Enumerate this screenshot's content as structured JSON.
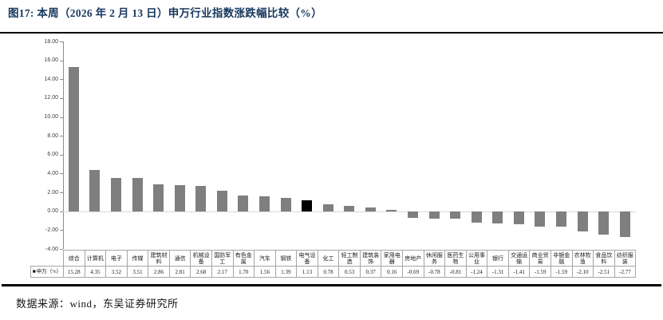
{
  "figure": {
    "title": "图17:  本周（2026 年 2 月 13 日）申万行业指数涨跌幅比较（%）",
    "source": "数据来源：wind，东吴证券研究所"
  },
  "chart_data": {
    "type": "bar",
    "title": "本周（2026 年 2 月 13 日）申万行业指数涨跌幅比较（%）",
    "series_name": "申万（%）",
    "legend": {
      "marker": "■",
      "label": "申万（%）"
    },
    "categories": [
      "综合",
      "计算机",
      "电子",
      "传媒",
      "建筑材料",
      "通信",
      "机械设备",
      "国防军工",
      "有色金属",
      "汽车",
      "钢铁",
      "电气设备",
      "化工",
      "轻工制造",
      "建筑装饰",
      "家用电器",
      "房地产",
      "休闲服务",
      "医药生物",
      "公用事业",
      "银行",
      "交通运输",
      "商业贸易",
      "非银金融",
      "农林牧渔",
      "食品饮料",
      "纺织服装"
    ],
    "values": [
      15.28,
      4.35,
      3.52,
      3.51,
      2.86,
      2.81,
      2.68,
      2.17,
      1.7,
      1.56,
      1.39,
      1.13,
      0.78,
      0.53,
      0.37,
      0.16,
      -0.69,
      -0.78,
      -0.81,
      -1.24,
      -1.31,
      -1.41,
      -1.59,
      -1.59,
      -2.1,
      -2.51,
      -2.77
    ],
    "highlight_category": "电气设备",
    "ylim": [
      -4,
      18
    ],
    "ytick_step": 2,
    "ytick_labels": [
      "18.00",
      "16.00",
      "14.00",
      "12.00",
      "10.00",
      "8.00",
      "6.00",
      "4.00",
      "2.00",
      "0.00",
      "-2.00",
      "-4.00"
    ],
    "xlabel": "",
    "ylabel": "",
    "grid": false,
    "data_table": true,
    "legend_position": "table-left",
    "bar_color": "#7f7f7f",
    "highlight_color": "#000000",
    "zero_line_color": "#d9d9d9"
  },
  "colors": {
    "title": "#17375e",
    "rule": "#000000",
    "axis": "#8c8c8c",
    "table_border": "#a6a6a6",
    "text": "#1a1a1a"
  }
}
